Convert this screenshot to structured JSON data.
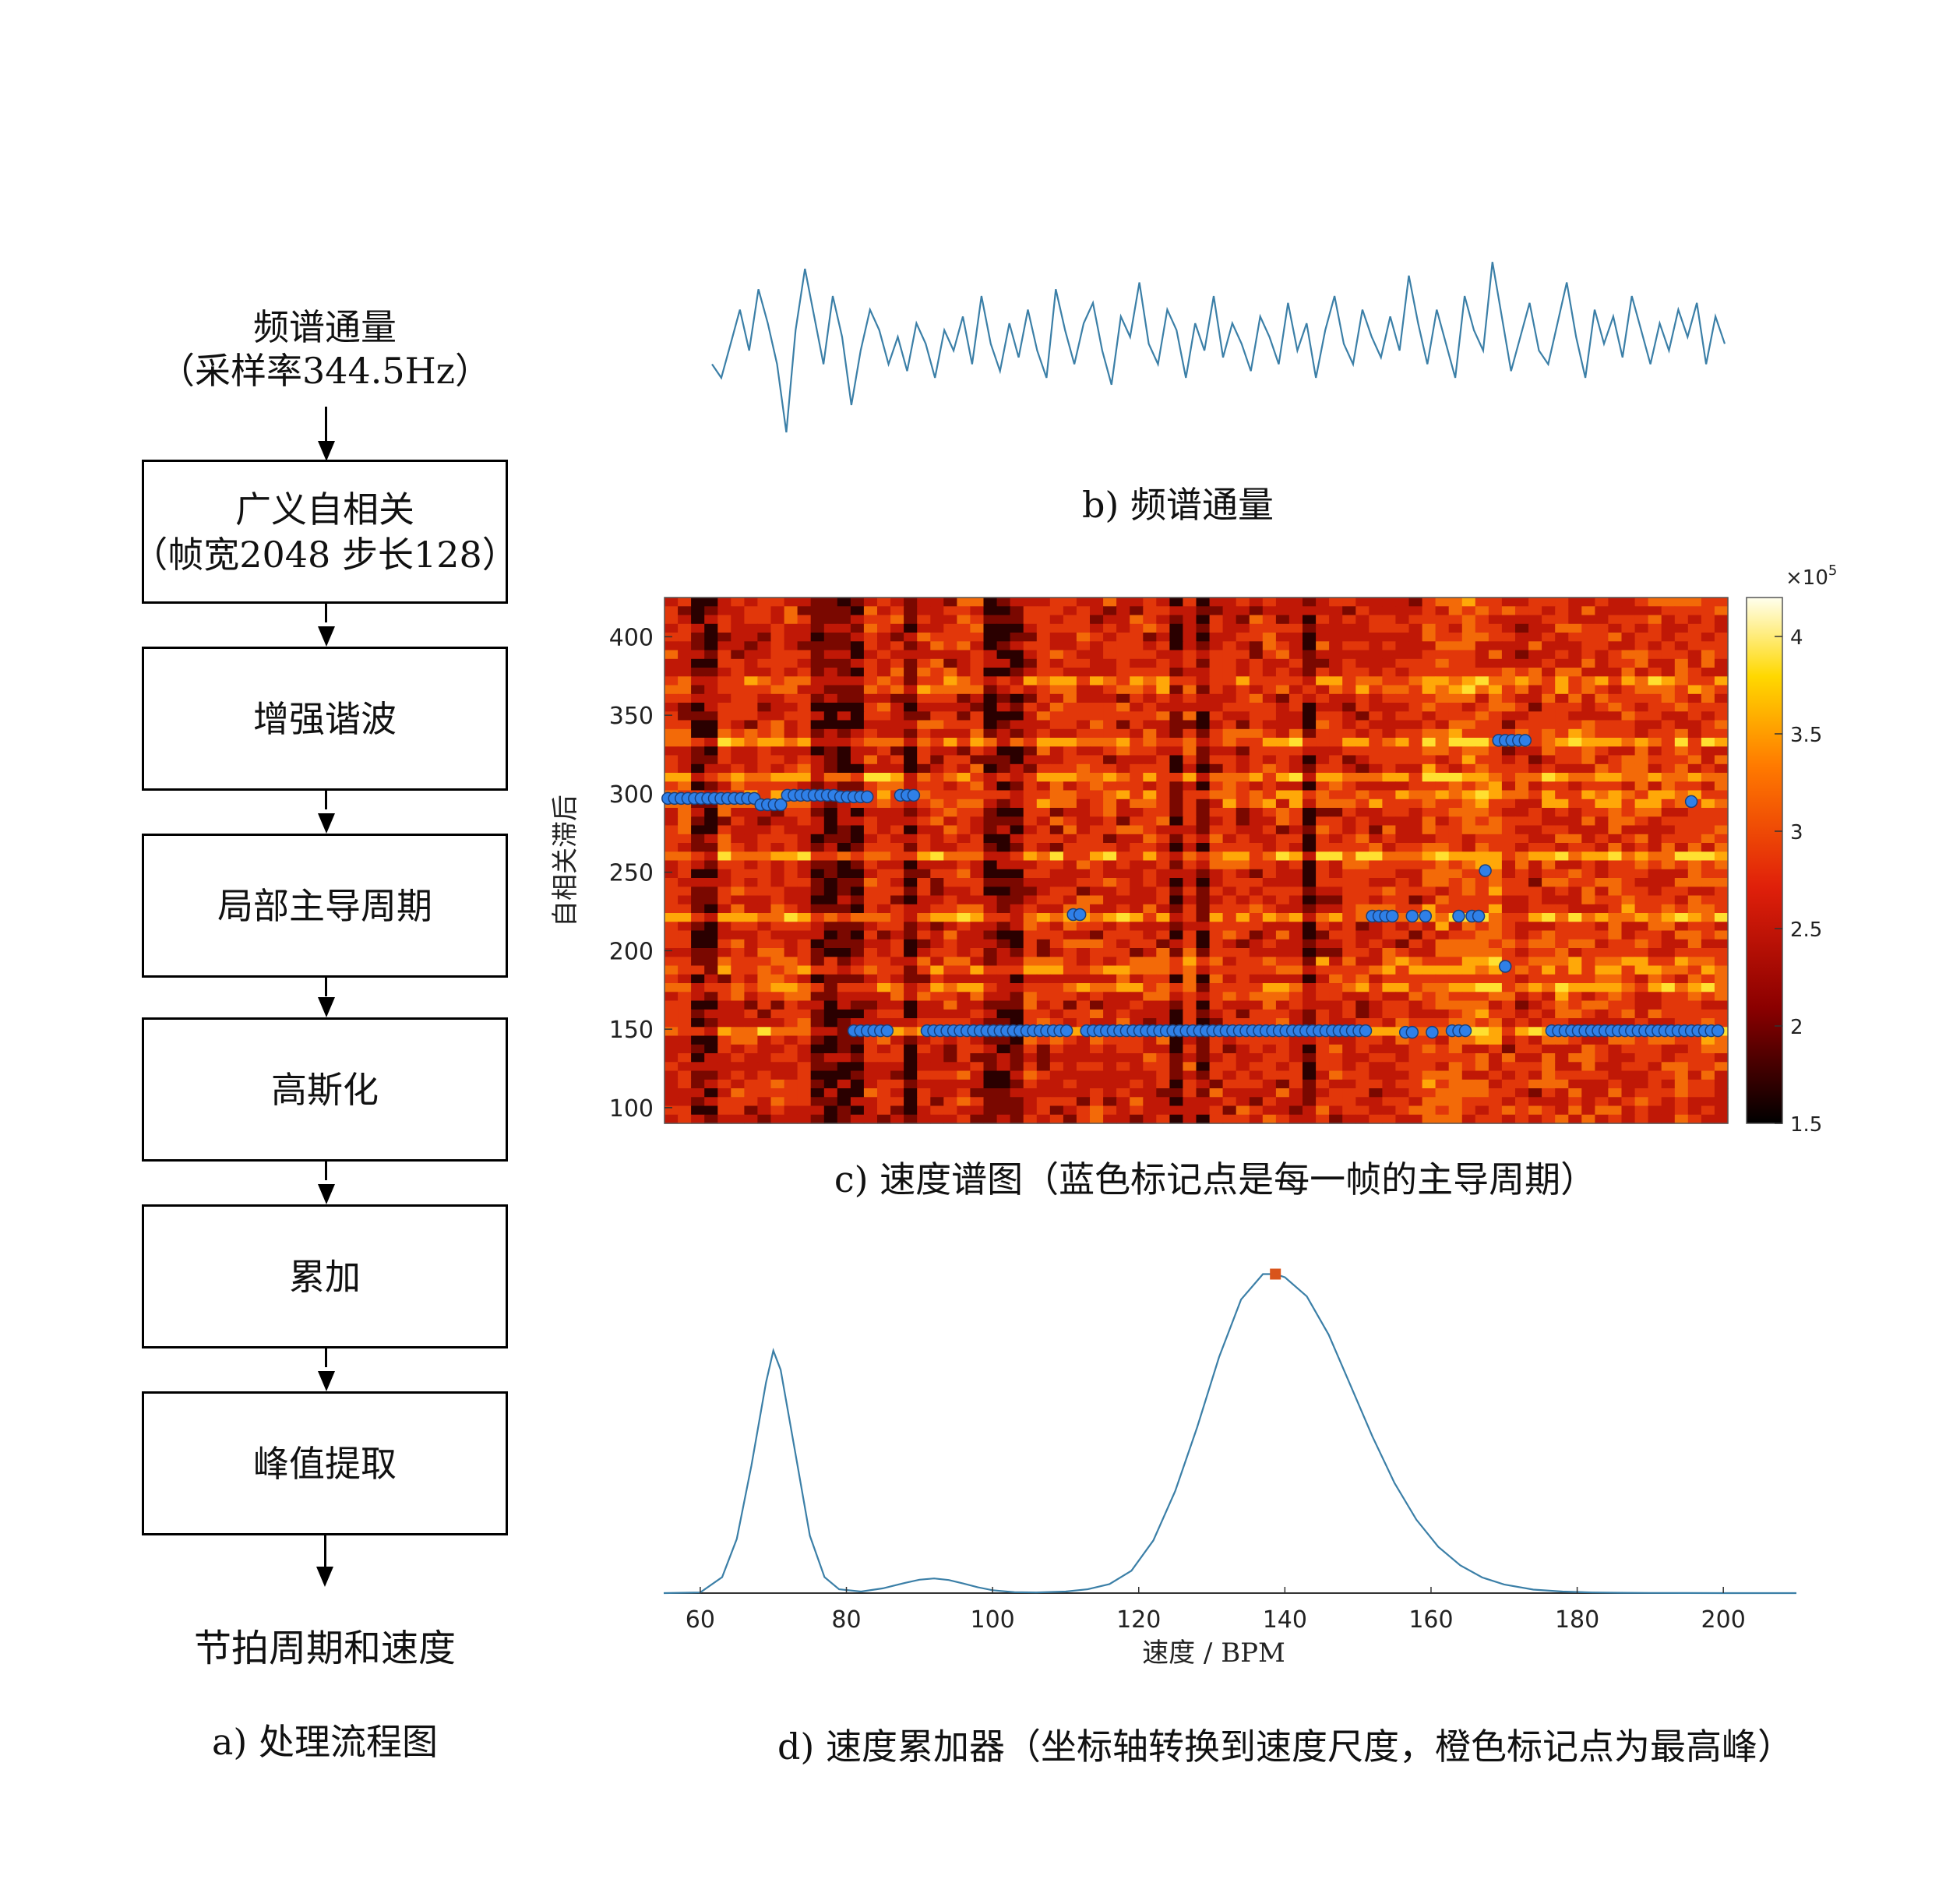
{
  "flowchart": {
    "input_line1": "频谱通量",
    "input_line2": "（采样率344.5Hz）",
    "steps": [
      {
        "line1": "广义自相关",
        "line2": "（帧宽2048 步长128）"
      },
      {
        "line1": "增强谐波",
        "line2": ""
      },
      {
        "line1": "局部主导周期",
        "line2": ""
      },
      {
        "line1": "高斯化",
        "line2": ""
      },
      {
        "line1": "累加",
        "line2": ""
      },
      {
        "line1": "峰值提取",
        "line2": ""
      }
    ],
    "output": "节拍周期和速度",
    "caption": "a) 处理流程图"
  },
  "captions": {
    "b": "b) 频谱通量",
    "c": "c) 速度谱图（蓝色标记点是每一帧的主导周期）",
    "d": "d) 速度累加器（坐标轴转换到速度尺度，橙色标记点为最高峰）"
  },
  "colors": {
    "line": "#3b7fa7",
    "marker_blue": "#2f80e8",
    "marker_orange": "#d9541b"
  },
  "chart_data": [
    {
      "type": "line",
      "title": "",
      "note_visible": "spectral flux waveform without axes",
      "values": [
        0.2,
        0.1,
        0.35,
        0.6,
        0.3,
        0.75,
        0.5,
        0.2,
        -0.3,
        0.45,
        0.9,
        0.55,
        0.2,
        0.7,
        0.4,
        -0.1,
        0.3,
        0.6,
        0.45,
        0.2,
        0.4,
        0.15,
        0.5,
        0.35,
        0.1,
        0.45,
        0.3,
        0.55,
        0.2,
        0.7,
        0.35,
        0.15,
        0.5,
        0.25,
        0.6,
        0.3,
        0.1,
        0.75,
        0.45,
        0.2,
        0.5,
        0.65,
        0.3,
        0.05,
        0.55,
        0.4,
        0.8,
        0.35,
        0.2,
        0.6,
        0.45,
        0.1,
        0.5,
        0.3,
        0.7,
        0.25,
        0.5,
        0.35,
        0.15,
        0.55,
        0.4,
        0.2,
        0.65,
        0.3,
        0.5,
        0.1,
        0.45,
        0.7,
        0.35,
        0.2,
        0.6,
        0.4,
        0.25,
        0.55,
        0.3,
        0.85,
        0.5,
        0.2,
        0.6,
        0.35,
        0.1,
        0.7,
        0.45,
        0.3,
        0.95,
        0.55,
        0.15,
        0.4,
        0.65,
        0.3,
        0.2,
        0.5,
        0.8,
        0.4,
        0.1,
        0.6,
        0.35,
        0.55,
        0.25,
        0.7,
        0.45,
        0.2,
        0.5,
        0.3,
        0.6,
        0.4,
        0.65,
        0.2,
        0.55,
        0.35
      ],
      "ylim": [
        -0.5,
        1.1
      ]
    },
    {
      "type": "heatmap",
      "title": "",
      "ylabel": "自相关滞后",
      "yticks": [
        "400",
        "350",
        "300",
        "250",
        "200",
        "150",
        "100"
      ],
      "ylim": [
        90,
        425
      ],
      "colorbar_ticks": [
        "4",
        "3.5",
        "3",
        "2.5",
        "2",
        "1.5"
      ],
      "colorbar_range": [
        1.5,
        4.2
      ],
      "colorbar_exponent_base": "×10",
      "colorbar_exponent": "5",
      "dominant_period_markers": [
        {
          "frames": [
            1,
            2,
            3,
            4,
            5,
            6,
            7,
            8,
            9,
            10,
            11,
            12,
            13,
            14
          ],
          "lag": 297
        },
        {
          "frames": [
            15,
            16,
            17,
            18
          ],
          "lag": 293
        },
        {
          "frames": [
            19,
            20,
            21,
            22,
            23,
            24,
            25,
            26
          ],
          "lag": 299
        },
        {
          "frames": [
            27,
            28,
            29,
            30,
            31
          ],
          "lag": 298
        },
        {
          "frames": [
            36,
            37,
            38
          ],
          "lag": 299
        },
        {
          "frames": [
            62,
            63
          ],
          "lag": 223
        },
        {
          "frames": [
            29,
            30,
            31,
            32,
            33,
            34
          ],
          "lag": 149
        },
        {
          "frames": [
            40,
            41,
            42,
            43,
            44,
            45,
            46,
            47,
            48,
            49,
            50,
            51,
            52,
            53,
            54,
            55,
            56,
            57,
            58,
            59,
            60,
            61
          ],
          "lag": 149
        },
        {
          "frames": [
            64,
            65,
            66,
            67,
            68,
            69,
            70,
            71,
            72,
            73,
            74,
            75,
            76,
            77,
            78,
            79,
            80,
            81,
            82,
            83,
            84,
            85,
            86,
            87,
            88,
            89,
            90,
            91,
            92,
            93,
            94,
            95,
            96,
            97,
            98,
            99,
            100,
            101,
            102,
            103,
            104,
            105,
            106
          ],
          "lag": 149
        },
        {
          "frames": [
            107,
            108,
            109,
            110
          ],
          "lag": 222
        },
        {
          "frames": [
            113
          ],
          "lag": 222
        },
        {
          "frames": [
            115
          ],
          "lag": 222
        },
        {
          "frames": [
            120
          ],
          "lag": 222
        },
        {
          "frames": [
            122,
            123
          ],
          "lag": 222
        },
        {
          "frames": [
            112,
            113
          ],
          "lag": 148
        },
        {
          "frames": [
            116
          ],
          "lag": 148
        },
        {
          "frames": [
            119,
            120,
            121
          ],
          "lag": 149
        },
        {
          "frames": [
            124
          ],
          "lag": 251
        },
        {
          "frames": [
            127
          ],
          "lag": 190
        },
        {
          "frames": [
            126,
            127,
            128,
            129,
            130
          ],
          "lag": 334
        },
        {
          "frames": [
            134,
            135,
            136,
            137,
            138,
            139,
            140,
            141,
            142,
            143,
            144,
            145,
            146,
            147,
            148,
            149,
            150,
            151,
            152,
            153,
            154,
            155,
            156,
            157
          ],
          "lag": 149
        },
        {
          "frames": [
            155
          ],
          "lag": 295
        },
        {
          "frames": [
            157,
            158,
            159
          ],
          "lag": 149
        }
      ],
      "frames_total": 160
    },
    {
      "type": "line",
      "title": "",
      "xlabel": "速度 / BPM",
      "xticks": [
        "60",
        "80",
        "100",
        "120",
        "140",
        "160",
        "180",
        "200"
      ],
      "xlim": [
        55,
        210
      ],
      "x": [
        55,
        60,
        63,
        65,
        67,
        69,
        70,
        71,
        73,
        75,
        77,
        79,
        82,
        85,
        88,
        90,
        92,
        94,
        96,
        98,
        100,
        103,
        106,
        110,
        113,
        116,
        119,
        122,
        125,
        128,
        131,
        134,
        137,
        138.7,
        140,
        143,
        146,
        149,
        152,
        155,
        158,
        161,
        164,
        167,
        170,
        174,
        178,
        182,
        186,
        190,
        195,
        200,
        205,
        210
      ],
      "y": [
        0,
        0.002,
        0.05,
        0.17,
        0.4,
        0.66,
        0.76,
        0.7,
        0.44,
        0.18,
        0.05,
        0.012,
        0.005,
        0.015,
        0.032,
        0.042,
        0.046,
        0.041,
        0.03,
        0.018,
        0.009,
        0.003,
        0.002,
        0.005,
        0.012,
        0.028,
        0.07,
        0.165,
        0.32,
        0.52,
        0.74,
        0.92,
        1.0,
        1.0,
        0.99,
        0.93,
        0.81,
        0.65,
        0.49,
        0.345,
        0.23,
        0.145,
        0.087,
        0.049,
        0.027,
        0.011,
        0.005,
        0.002,
        0.001,
        0.0005,
        0.0002,
        0.0001,
        0,
        0
      ],
      "peak": {
        "x": 138.7,
        "y": 1.0
      },
      "ylim": [
        0,
        1.05
      ]
    }
  ]
}
